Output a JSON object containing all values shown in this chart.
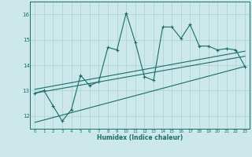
{
  "xlabel": "Humidex (Indice chaleur)",
  "bg_color": "#cce8ea",
  "grid_color": "#aad0d2",
  "line_color": "#1a6e65",
  "x_data": [
    0,
    1,
    2,
    3,
    4,
    5,
    6,
    7,
    8,
    9,
    10,
    11,
    12,
    13,
    14,
    15,
    16,
    17,
    18,
    19,
    20,
    21,
    22,
    23
  ],
  "y_main": [
    12.9,
    13.0,
    12.4,
    11.8,
    12.25,
    13.6,
    13.2,
    13.35,
    14.7,
    14.6,
    16.05,
    14.9,
    13.55,
    13.4,
    15.5,
    15.5,
    15.05,
    15.6,
    14.75,
    14.75,
    14.6,
    14.65,
    14.6,
    13.95
  ],
  "ylim": [
    11.5,
    16.5
  ],
  "xlim": [
    -0.5,
    23.5
  ],
  "yticks": [
    12,
    13,
    14,
    15,
    16
  ],
  "xticks": [
    0,
    1,
    2,
    3,
    4,
    5,
    6,
    7,
    8,
    9,
    10,
    11,
    12,
    13,
    14,
    15,
    16,
    17,
    18,
    19,
    20,
    21,
    22,
    23
  ],
  "trend1_x": [
    0,
    23
  ],
  "trend1_y": [
    13.05,
    14.55
  ],
  "trend2_x": [
    0,
    23
  ],
  "trend2_y": [
    12.9,
    14.35
  ],
  "trend3_x": [
    0,
    23
  ],
  "trend3_y": [
    11.75,
    13.95
  ]
}
